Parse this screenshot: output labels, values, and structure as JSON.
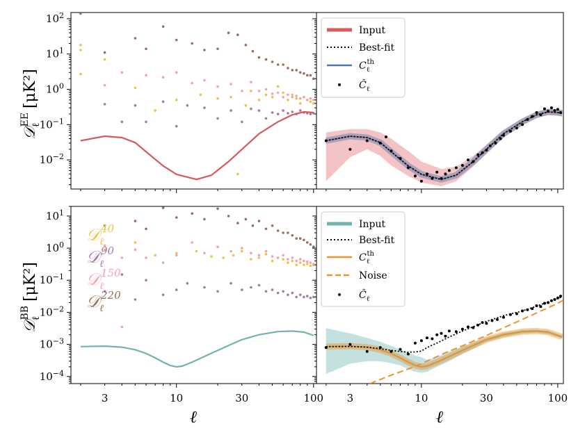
{
  "figure_domain": "Chart",
  "colors": {
    "input_ee": "#d65a5a",
    "input_bb": "#6fb5ae",
    "cth_ee": "#4e79a7",
    "cth_bb": "#f0922a",
    "noise": "#f0922a",
    "band_ee": "#f2b8bc",
    "band_bb": "#b9dcd8",
    "d40": "#ecc441",
    "d90": "#a877a8",
    "d150": "#f4a0b0",
    "d220": "#9c6e57",
    "chat": "#000000"
  },
  "chart_data": [
    {
      "id": "top-left",
      "type": "scatter",
      "ylabel": "𝒟ℓᴱᴱ [μK²]",
      "ylabel_main": "𝒟",
      "ylabel_sub": "ℓ",
      "ylabel_sup": "EE",
      "ylabel_unit": "[μK²]",
      "xscale": "log",
      "yscale": "log",
      "xlim": [
        1.7,
        105
      ],
      "ylim": [
        0.0015,
        150
      ],
      "yticks": [
        {
          "v": 0.01,
          "b": "10",
          "e": "−2"
        },
        {
          "v": 0.1,
          "b": "10",
          "e": "−1"
        },
        {
          "v": 1,
          "b": "10",
          "e": "0"
        },
        {
          "v": 10,
          "b": "10",
          "e": "1"
        },
        {
          "v": 100,
          "b": "10",
          "e": "2"
        }
      ],
      "input_curve": {
        "name": "Input",
        "x": [
          2,
          3,
          4,
          5,
          6,
          8,
          10,
          14,
          18,
          24,
          30,
          40,
          55,
          70,
          85,
          100
        ],
        "y": [
          0.035,
          0.047,
          0.043,
          0.031,
          0.017,
          0.0068,
          0.0039,
          0.0028,
          0.0037,
          0.009,
          0.02,
          0.055,
          0.12,
          0.19,
          0.23,
          0.22
        ]
      },
      "series": [
        {
          "name": "D40",
          "color": "#ecc441",
          "x": [
            2,
            2,
            3,
            5,
            7,
            10,
            15,
            20,
            25,
            28,
            32,
            35,
            40,
            45,
            50,
            55,
            60,
            65,
            70,
            75,
            80,
            85,
            90,
            95,
            100
          ],
          "y": [
            18,
            13,
            7,
            1.1,
            0.25,
            0.5,
            0.7,
            0.55,
            0.6,
            0.004,
            0.35,
            0.9,
            0.5,
            0.7,
            0.6,
            1.2,
            0.8,
            0.5,
            0.7,
            0.55,
            0.4,
            0.6,
            0.5,
            0.45,
            0.4
          ]
        },
        {
          "name": "D90",
          "color": "#a877a8",
          "x": [
            3,
            4,
            5,
            6,
            8,
            10,
            12,
            16,
            20,
            25,
            30,
            35,
            40,
            45,
            50,
            55,
            60,
            65,
            70,
            75,
            80,
            85,
            90,
            95,
            100
          ],
          "y": [
            0.38,
            0.12,
            0.35,
            0.12,
            0.45,
            0.09,
            0.35,
            0.3,
            0.15,
            0.25,
            0.12,
            0.28,
            0.25,
            0.15,
            0.22,
            0.2,
            0.25,
            0.21,
            0.23,
            0.2,
            0.25,
            0.22,
            0.21,
            0.2,
            0.21
          ]
        },
        {
          "name": "D150",
          "color": "#f4a0b0",
          "x": [
            3,
            4,
            6,
            8,
            10,
            13,
            16,
            20,
            25,
            30,
            35,
            40,
            45,
            50,
            55,
            60,
            65,
            70,
            75,
            80,
            85,
            90,
            95,
            100
          ],
          "y": [
            1.3,
            3,
            2.5,
            2.2,
            3,
            1.5,
            1.8,
            1.2,
            1.4,
            0.9,
            1.6,
            0.9,
            1,
            0.75,
            0.8,
            0.6,
            0.7,
            0.6,
            0.65,
            0.55,
            0.6,
            0.5,
            0.55,
            0.5
          ]
        },
        {
          "name": "D220",
          "color": "#9c6e57",
          "x": [
            2,
            3,
            5,
            6,
            8,
            10,
            13,
            16,
            20,
            24,
            28,
            32,
            36,
            40,
            45,
            50,
            55,
            60,
            65,
            70,
            75,
            80,
            85,
            90,
            95,
            100
          ],
          "y": [
            140,
            11,
            28,
            14,
            60,
            25,
            20,
            13,
            14,
            40,
            35,
            18,
            12,
            8,
            7,
            6,
            5,
            5,
            4,
            3.5,
            3.5,
            3,
            2.8,
            2.5,
            2.5,
            2
          ]
        },
        {
          "name": "noisy",
          "color": "#ecc441",
          "x": [
            2
          ],
          "y": [
            2.7
          ]
        }
      ]
    },
    {
      "id": "top-right",
      "type": "line",
      "xscale": "log",
      "yscale": "log",
      "xlim": [
        1.7,
        110
      ],
      "ylim": [
        0.0015,
        150
      ],
      "legend": [
        "Input",
        "Best-fit",
        "C",
        "Ĉ"
      ],
      "legend_labels": {
        "input": "Input",
        "bestfit": "Best-fit",
        "cth_main": "C",
        "cth_sub": "ℓ",
        "cth_sup": "th",
        "chat_main": "Ĉ",
        "chat_sub": "ℓ"
      },
      "input_curve": {
        "name": "Input",
        "x": [
          2,
          3,
          4,
          5,
          6,
          8,
          10,
          14,
          18,
          24,
          30,
          40,
          55,
          70,
          85,
          100,
          108
        ],
        "y": [
          0.035,
          0.047,
          0.043,
          0.031,
          0.017,
          0.0068,
          0.0039,
          0.0028,
          0.0037,
          0.009,
          0.02,
          0.055,
          0.12,
          0.19,
          0.23,
          0.22,
          0.21
        ]
      },
      "band_upper": [
        0.06,
        0.075,
        0.075,
        0.06,
        0.04,
        0.018,
        0.009,
        0.0055,
        0.0065,
        0.013,
        0.027,
        0.07,
        0.15,
        0.23,
        0.28,
        0.27,
        0.26
      ],
      "band_lower": [
        0.0025,
        0.012,
        0.02,
        0.013,
        0.007,
        0.0035,
        0.0023,
        0.0018,
        0.0025,
        0.0065,
        0.015,
        0.043,
        0.096,
        0.155,
        0.19,
        0.18,
        0.17
      ],
      "chat": {
        "x": [
          2,
          3,
          4,
          5,
          5.5,
          6,
          7,
          8,
          9,
          10,
          11,
          12,
          13,
          14,
          15,
          16,
          18,
          20,
          22,
          24,
          26,
          28,
          30,
          32,
          35,
          38,
          40,
          45,
          50,
          55,
          60,
          65,
          70,
          75,
          80,
          85,
          90,
          95,
          100,
          105
        ],
        "y": [
          0.035,
          0.02,
          0.035,
          0.03,
          0.045,
          0.018,
          0.011,
          0.006,
          0.0035,
          0.0025,
          0.004,
          0.003,
          0.0045,
          0.003,
          0.004,
          0.005,
          0.006,
          0.007,
          0.01,
          0.009,
          0.014,
          0.016,
          0.019,
          0.025,
          0.03,
          0.04,
          0.05,
          0.065,
          0.08,
          0.1,
          0.14,
          0.17,
          0.22,
          0.19,
          0.28,
          0.24,
          0.3,
          0.25,
          0.27,
          0.22
        ]
      }
    },
    {
      "id": "bottom-left",
      "type": "scatter",
      "ylabel": "𝒟ℓᴮᴮ [μK²]",
      "ylabel_main": "𝒟",
      "ylabel_sub": "ℓ",
      "ylabel_sup": "BB",
      "ylabel_unit": "[μK²]",
      "xscale": "log",
      "yscale": "log",
      "xlim": [
        1.7,
        105
      ],
      "ylim": [
        6e-05,
        20
      ],
      "xticks": [
        {
          "v": 3,
          "l": "3"
        },
        {
          "v": 10,
          "l": "10"
        },
        {
          "v": 30,
          "l": "30"
        },
        {
          "v": 100,
          "l": "100"
        }
      ],
      "yticks": [
        {
          "v": 0.0001,
          "b": "10",
          "e": "−4"
        },
        {
          "v": 0.001,
          "b": "10",
          "e": "−3"
        },
        {
          "v": 0.01,
          "b": "10",
          "e": "−2"
        },
        {
          "v": 0.1,
          "b": "10",
          "e": "−1"
        },
        {
          "v": 1,
          "b": "10",
          "e": "0"
        },
        {
          "v": 10,
          "b": "10",
          "e": "1"
        }
      ],
      "xlabel": "ℓ",
      "dataset_labels": [
        {
          "main": "𝒟",
          "sub": "ℓ",
          "sup": "40",
          "color": "#ecc441"
        },
        {
          "main": "𝒟",
          "sub": "ℓ",
          "sup": "90",
          "color": "#a877a8"
        },
        {
          "main": "𝒟",
          "sub": "ℓ",
          "sup": "150",
          "color": "#f4a0b0"
        },
        {
          "main": "𝒟",
          "sub": "ℓ",
          "sup": "220",
          "color": "#9c6e57"
        }
      ],
      "input_curve": {
        "name": "Input",
        "x": [
          2,
          3,
          4,
          5,
          6,
          7,
          8,
          9,
          10,
          11,
          13,
          16,
          20,
          25,
          30,
          40,
          55,
          70,
          85,
          100
        ],
        "y": [
          0.00085,
          0.00088,
          0.00082,
          0.00068,
          0.00052,
          0.00038,
          0.00028,
          0.00022,
          0.0002,
          0.00021,
          0.00028,
          0.00042,
          0.00065,
          0.001,
          0.0014,
          0.002,
          0.0025,
          0.0026,
          0.0024,
          0.0019
        ]
      },
      "series": [
        {
          "name": "D40",
          "color": "#ecc441",
          "x": [
            3,
            5,
            7,
            10,
            14,
            18,
            22,
            26,
            30,
            35,
            40,
            45,
            50,
            55,
            60,
            65,
            70,
            75,
            80,
            85,
            90,
            95,
            100
          ],
          "y": [
            0.9,
            1.5,
            0.6,
            0.7,
            0.8,
            0.55,
            0.5,
            0.6,
            0.8,
            0.45,
            0.5,
            0.65,
            0.4,
            0.5,
            0.45,
            0.35,
            0.4,
            0.3,
            0.35,
            0.3,
            0.32,
            0.28,
            0.3
          ]
        },
        {
          "name": "D90",
          "color": "#a877a8",
          "x": [
            3,
            4,
            5,
            6,
            8,
            10,
            12,
            16,
            20,
            25,
            30,
            35,
            40,
            45,
            50,
            55,
            60,
            65,
            70,
            75,
            80,
            85,
            90,
            95,
            100
          ],
          "y": [
            0.045,
            0.15,
            0.025,
            0.1,
            0.035,
            0.05,
            0.08,
            0.06,
            0.045,
            0.08,
            0.05,
            0.06,
            0.07,
            0.045,
            0.05,
            0.04,
            0.045,
            0.035,
            0.04,
            0.03,
            0.035,
            0.03,
            0.032,
            0.028,
            0.03
          ]
        },
        {
          "name": "D150",
          "color": "#f4a0b0",
          "x": [
            3,
            4,
            5,
            6,
            8,
            10,
            13,
            16,
            20,
            25,
            30,
            35,
            40,
            45,
            50,
            55,
            60,
            65,
            70,
            75,
            80,
            85,
            90,
            95,
            100
          ],
          "y": [
            1.2,
            0.5,
            0.9,
            0.5,
            0.35,
            0.6,
            1.5,
            0.7,
            1.1,
            0.8,
            1,
            0.7,
            0.6,
            0.8,
            0.55,
            0.5,
            0.6,
            0.45,
            0.5,
            0.4,
            0.45,
            0.4,
            0.38,
            0.35,
            0.32
          ]
        },
        {
          "name": "D220",
          "color": "#9c6e57",
          "x": [
            3,
            5,
            6,
            8,
            10,
            13,
            16,
            20,
            24,
            28,
            32,
            36,
            40,
            45,
            50,
            55,
            60,
            65,
            70,
            75,
            80,
            85,
            90,
            95,
            100
          ],
          "y": [
            5,
            7,
            4,
            18,
            9,
            12,
            8,
            17,
            10,
            6,
            8,
            5,
            7,
            4,
            5,
            3.5,
            3,
            3,
            2.5,
            2,
            2,
            1.8,
            1.5,
            1.3,
            1.1
          ]
        },
        {
          "name": "stray",
          "color": "#f4a0b0",
          "x": [
            4
          ],
          "y": [
            0.0035
          ]
        }
      ]
    },
    {
      "id": "bottom-right",
      "type": "line",
      "xscale": "log",
      "yscale": "log",
      "xlim": [
        1.7,
        110
      ],
      "ylim": [
        6e-05,
        20
      ],
      "xticks": [
        {
          "v": 3,
          "l": "3"
        },
        {
          "v": 10,
          "l": "10"
        },
        {
          "v": 30,
          "l": "30"
        },
        {
          "v": 100,
          "l": "100"
        }
      ],
      "xlabel": "ℓ",
      "legend": [
        "Input",
        "Best-fit",
        "C",
        "Noise",
        "Ĉ"
      ],
      "legend_labels": {
        "input": "Input",
        "bestfit": "Best-fit",
        "cth_main": "C",
        "cth_sub": "ℓ",
        "cth_sup": "th",
        "noise": "Noise",
        "chat_main": "Ĉ",
        "chat_sub": "ℓ"
      },
      "input_curve": {
        "name": "Input",
        "x": [
          2,
          3,
          4,
          5,
          6,
          7,
          8,
          9,
          10,
          11,
          13,
          16,
          20,
          25,
          30,
          40,
          55,
          70,
          85,
          100,
          108
        ],
        "y": [
          0.00085,
          0.00088,
          0.00082,
          0.00068,
          0.00052,
          0.00038,
          0.00028,
          0.00022,
          0.0002,
          0.00021,
          0.00028,
          0.00042,
          0.00065,
          0.001,
          0.0014,
          0.002,
          0.0025,
          0.0026,
          0.0024,
          0.0019,
          0.0017
        ]
      },
      "band_upper": [
        0.0032,
        0.0022,
        0.0016,
        0.0012,
        0.0009,
        0.0007,
        0.00055,
        0.00045,
        0.0004,
        0.00033,
        0.0004,
        0.0006,
        0.00085,
        0.0012,
        0.0016,
        0.0023,
        0.0028,
        0.0029,
        0.0027,
        0.0021,
        0.0019
      ],
      "band_lower": [
        0.00012,
        0.00025,
        0.0003,
        0.0003,
        0.00026,
        0.00022,
        0.00017,
        0.00014,
        0.00013,
        0.00014,
        0.0002,
        0.0003,
        0.0005,
        0.0008,
        0.0012,
        0.0017,
        0.0022,
        0.0023,
        0.0021,
        0.0017,
        0.0015
      ],
      "bestfit": {
        "x": [
          2,
          3,
          4,
          5,
          6,
          7,
          8,
          9,
          10,
          11,
          13,
          16,
          20,
          25,
          30,
          40,
          55,
          70,
          85,
          100,
          108
        ],
        "y": [
          0.00085,
          0.00086,
          0.00082,
          0.00073,
          0.00065,
          0.0006,
          0.00057,
          0.00058,
          0.00062,
          0.0008,
          0.0011,
          0.0017,
          0.0026,
          0.0038,
          0.0052,
          0.0078,
          0.011,
          0.0155,
          0.021,
          0.027,
          0.03
        ]
      },
      "noise": {
        "x": [
          4.2,
          6,
          8,
          10,
          15,
          20,
          30,
          50,
          70,
          100,
          110
        ],
        "y": [
          6e-05,
          0.00011,
          0.00017,
          0.00025,
          0.00055,
          0.0009,
          0.0019,
          0.005,
          0.0095,
          0.019,
          0.024
        ]
      },
      "chat": {
        "x": [
          2,
          3,
          4,
          5,
          6,
          7,
          8,
          9,
          10,
          11,
          12,
          13,
          14,
          15,
          16,
          18,
          20,
          22,
          24,
          26,
          28,
          30,
          33,
          36,
          40,
          45,
          50,
          55,
          60,
          65,
          70,
          75,
          80,
          85,
          90,
          95,
          100,
          105
        ],
        "y": [
          0.0008,
          0.001,
          0.0006,
          0.0008,
          0.0006,
          0.0007,
          0.0005,
          0.0011,
          0.0013,
          0.0016,
          0.0015,
          0.002,
          0.0022,
          0.0018,
          0.0026,
          0.0025,
          0.003,
          0.0035,
          0.0033,
          0.004,
          0.0048,
          0.0045,
          0.0055,
          0.006,
          0.007,
          0.0085,
          0.009,
          0.011,
          0.012,
          0.013,
          0.016,
          0.015,
          0.019,
          0.02,
          0.023,
          0.025,
          0.028,
          0.032
        ]
      }
    }
  ]
}
